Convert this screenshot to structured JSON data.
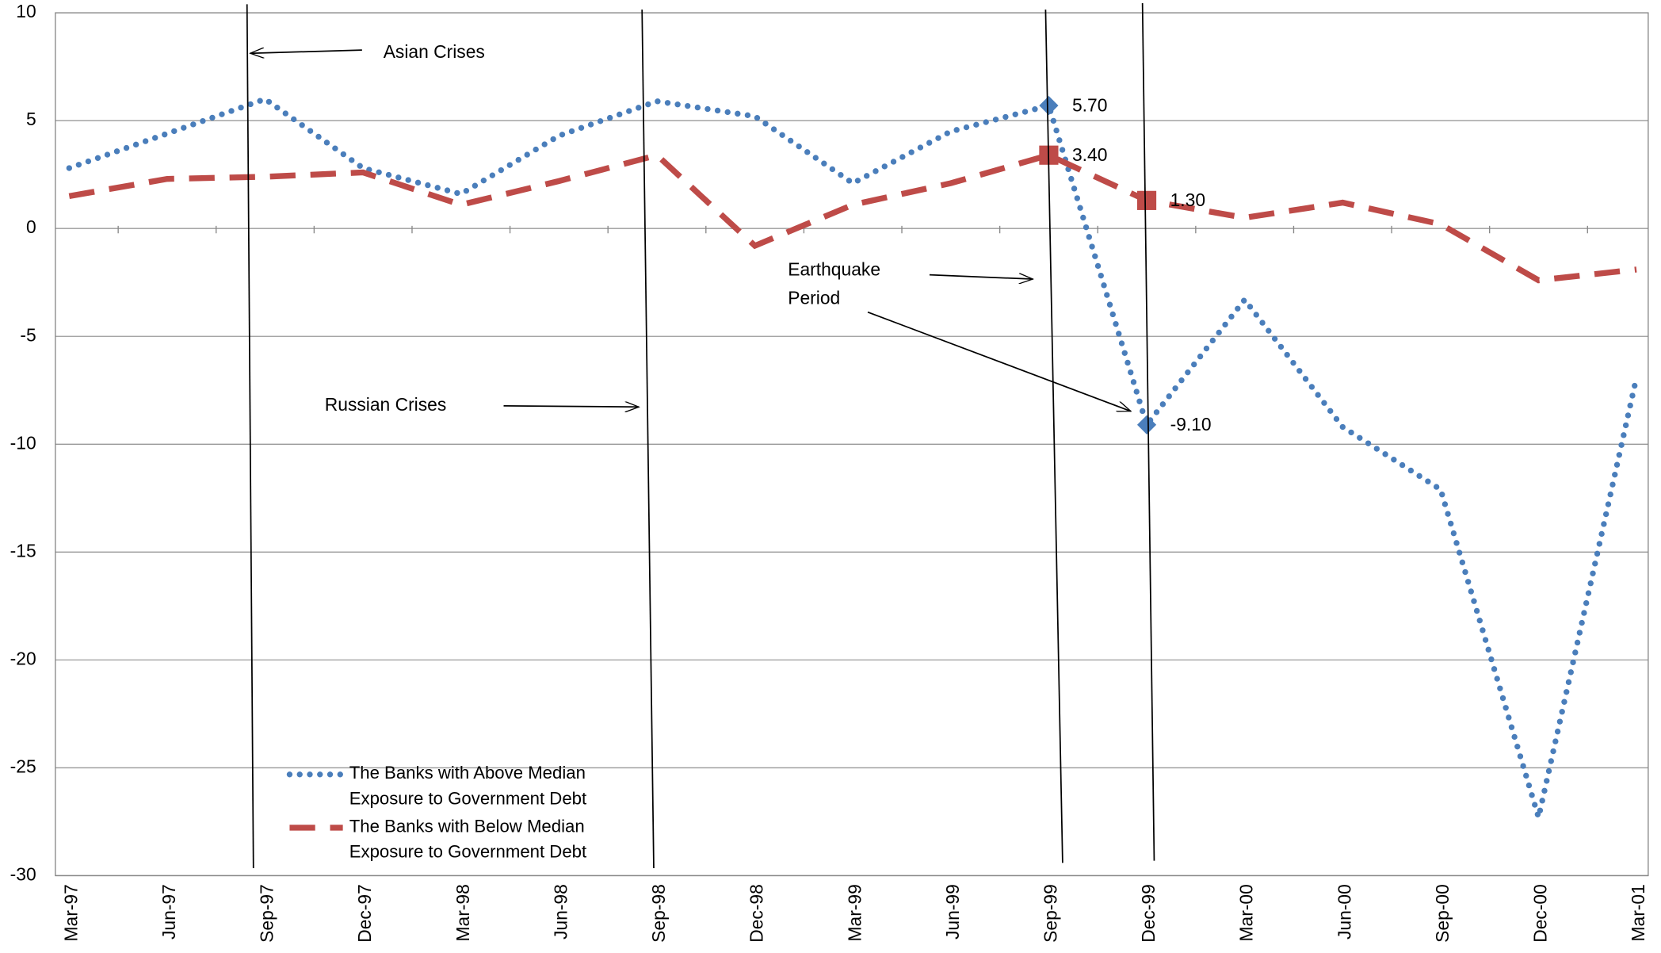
{
  "chart_data": {
    "type": "line",
    "categories": [
      "Mar-97",
      "Jun-97",
      "Sep-97",
      "Dec-97",
      "Mar-98",
      "Jun-98",
      "Sep-98",
      "Dec-98",
      "Mar-99",
      "Jun-99",
      "Sep-99",
      "Dec-99",
      "Mar-00",
      "Jun-00",
      "Sep-00",
      "Dec-00",
      "Mar-01"
    ],
    "series": [
      {
        "name": "The Banks with Above Median Exposure to Government Debt",
        "color": "#4a7ebb",
        "style": "dotted",
        "values": [
          2.8,
          4.4,
          6.0,
          2.8,
          1.6,
          4.3,
          5.9,
          5.2,
          2.1,
          4.5,
          5.7,
          -9.1,
          -3.3,
          -9.2,
          -12.1,
          -27.3,
          -6.9
        ],
        "value_labels": [
          null,
          null,
          null,
          null,
          null,
          null,
          null,
          null,
          null,
          null,
          "5.70",
          "-9.10",
          null,
          null,
          null,
          null,
          null
        ]
      },
      {
        "name": "The Banks with Below Median Exposure to Government Debt",
        "color": "#be4b48",
        "style": "dashed",
        "values": [
          1.5,
          2.3,
          2.4,
          2.6,
          1.1,
          2.2,
          3.4,
          -0.8,
          1.1,
          2.1,
          3.4,
          1.3,
          0.5,
          1.2,
          0.2,
          -2.4,
          -1.9
        ],
        "value_labels": [
          null,
          null,
          null,
          null,
          null,
          null,
          null,
          null,
          null,
          null,
          "3.40",
          "1.30",
          null,
          null,
          null,
          null,
          null
        ]
      }
    ],
    "ylim": [
      -30,
      10
    ],
    "yticks": [
      -30,
      -25,
      -20,
      -15,
      -10,
      -5,
      0,
      5,
      10
    ],
    "grid": true,
    "legend": "bottom-left",
    "annotations": [
      {
        "lines": [
          "Asian Crises"
        ]
      },
      {
        "lines": [
          "Russian Crises"
        ]
      },
      {
        "lines": [
          "Earthquake",
          "Period"
        ]
      }
    ]
  }
}
